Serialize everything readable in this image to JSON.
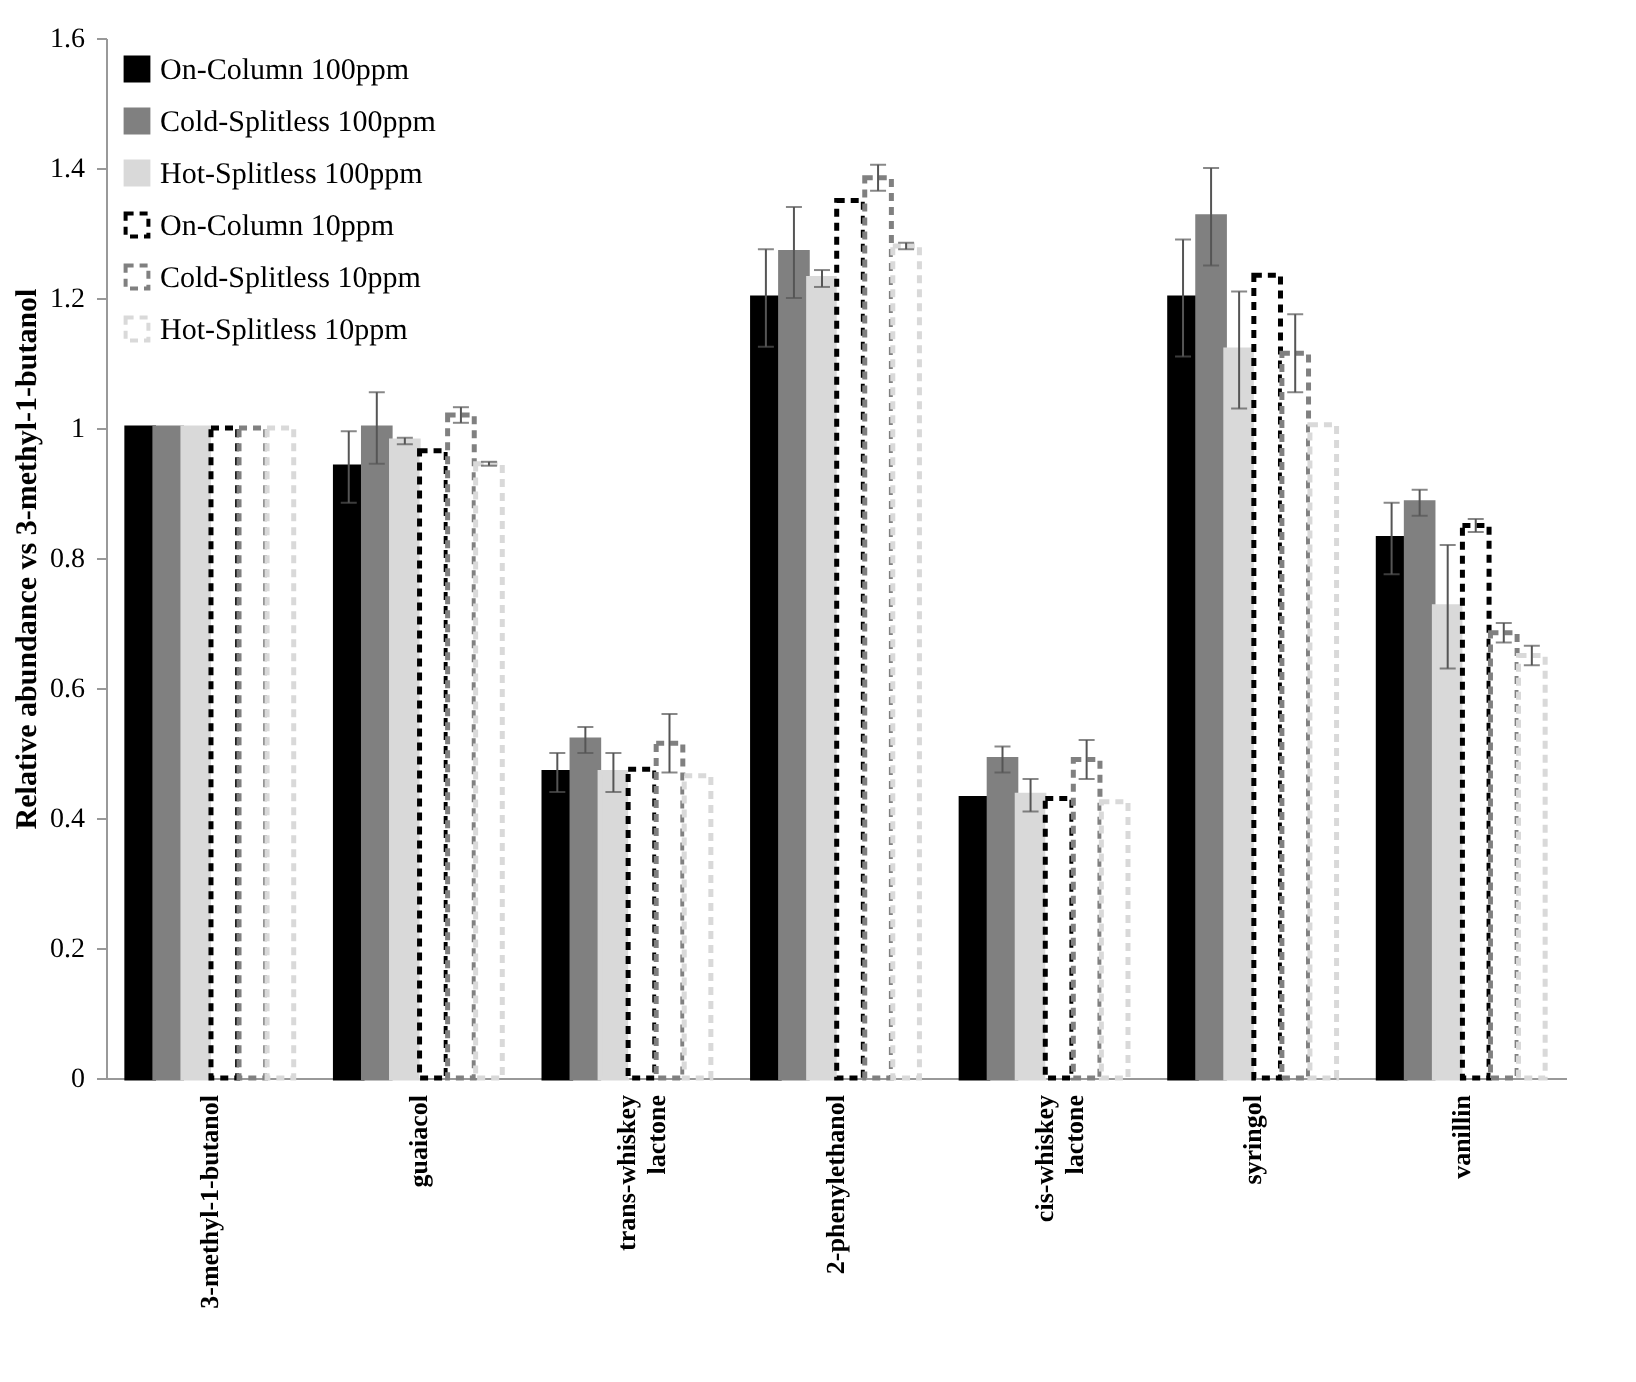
{
  "chart_data": {
    "type": "bar",
    "ylabel": "Relative abundance vs  3-methyl-1-butanol",
    "categories": [
      "3-methyl-1-butanol",
      "guaiacol",
      "trans-whiskey lactone",
      "2-phenylethanol",
      "cis-whiskey lactone",
      "syringol",
      "vanillin"
    ],
    "series": [
      {
        "name": "On-Column 100ppm",
        "color": "#000000",
        "values": [
          1.0,
          0.94,
          0.47,
          1.2,
          0.43,
          1.2,
          0.83
        ],
        "errors": [
          null,
          0.055,
          0.03,
          0.075,
          null,
          0.09,
          0.055
        ]
      },
      {
        "name": "Cold-Splitless 100ppm",
        "color": "#808080",
        "values": [
          1.0,
          1.0,
          0.52,
          1.27,
          0.49,
          1.325,
          0.885
        ],
        "errors": [
          null,
          0.055,
          0.02,
          0.07,
          0.02,
          0.075,
          0.02
        ]
      },
      {
        "name": "Hot-Splitless 100ppm",
        "color": "#d9d9d9",
        "values": [
          1.0,
          0.98,
          0.47,
          1.23,
          0.435,
          1.12,
          0.725
        ],
        "errors": [
          null,
          0.005,
          0.03,
          0.013,
          0.025,
          0.09,
          0.095
        ]
      },
      {
        "name": "On-Column 10ppm",
        "color": "#000000",
        "line_style": "dashed",
        "values": [
          1.0,
          0.965,
          0.475,
          1.35,
          0.43,
          1.235,
          0.85
        ],
        "errors": [
          null,
          null,
          null,
          null,
          null,
          null,
          0.01
        ]
      },
      {
        "name": "Cold-Splitless 10ppm",
        "color": "#808080",
        "line_style": "dashed",
        "values": [
          1.0,
          1.02,
          0.515,
          1.385,
          0.49,
          1.115,
          0.685
        ],
        "errors": [
          null,
          0.012,
          0.045,
          0.02,
          0.03,
          0.06,
          0.015
        ]
      },
      {
        "name": "Hot-Splitless 10ppm",
        "color": "#d9d9d9",
        "line_style": "dashed",
        "values": [
          1.0,
          0.945,
          0.465,
          1.28,
          0.425,
          1.005,
          0.65
        ],
        "errors": [
          null,
          0.003,
          null,
          0.005,
          null,
          null,
          0.015
        ]
      }
    ],
    "ylim": [
      0,
      1.6
    ],
    "yticks": [
      0,
      0.2,
      0.4,
      0.6,
      0.8,
      1,
      1.2,
      1.4,
      1.6
    ],
    "grid": false,
    "legend": "top left"
  }
}
